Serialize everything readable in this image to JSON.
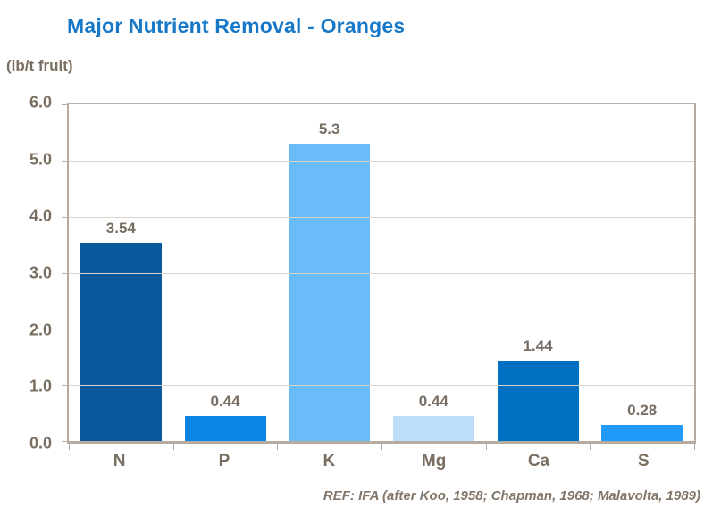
{
  "title": "Major Nutrient Removal - Oranges",
  "units_label": "(lb/t fruit)",
  "reference": "REF: IFA (after Koo, 1958; Chapman, 1968; Malavolta, 1989)",
  "colors": {
    "title": "#1878c8",
    "axis_frame": "#b5aba0",
    "gridline": "#d9d3cb",
    "axis_text": "#7a6e60",
    "value_text": "#776d62",
    "reference_text": "#82766a",
    "background": "#ffffff"
  },
  "chart_data": {
    "type": "bar",
    "title": "Major Nutrient Removal - Oranges",
    "ylabel": "(lb/t fruit)",
    "xlabel": "",
    "categories": [
      "N",
      "P",
      "K",
      "Mg",
      "Ca",
      "S"
    ],
    "values": [
      3.54,
      0.44,
      5.3,
      0.44,
      1.44,
      0.28
    ],
    "value_labels": [
      "3.54",
      "0.44",
      "5.3",
      "0.44",
      "1.44",
      "0.28"
    ],
    "bar_colors": [
      "#0a589c",
      "#0b84e6",
      "#69bcf7",
      "#bddefb",
      "#0070c2",
      "#219af9"
    ],
    "ylim": [
      0,
      6
    ],
    "ytick_labels": [
      "0.0",
      "1.0",
      "2.0",
      "3.0",
      "4.0",
      "5.0",
      "6.0"
    ],
    "grid": true,
    "legend": false,
    "annotation": "REF: IFA (after Koo, 1958; Chapman, 1968; Malavolta, 1989)"
  }
}
